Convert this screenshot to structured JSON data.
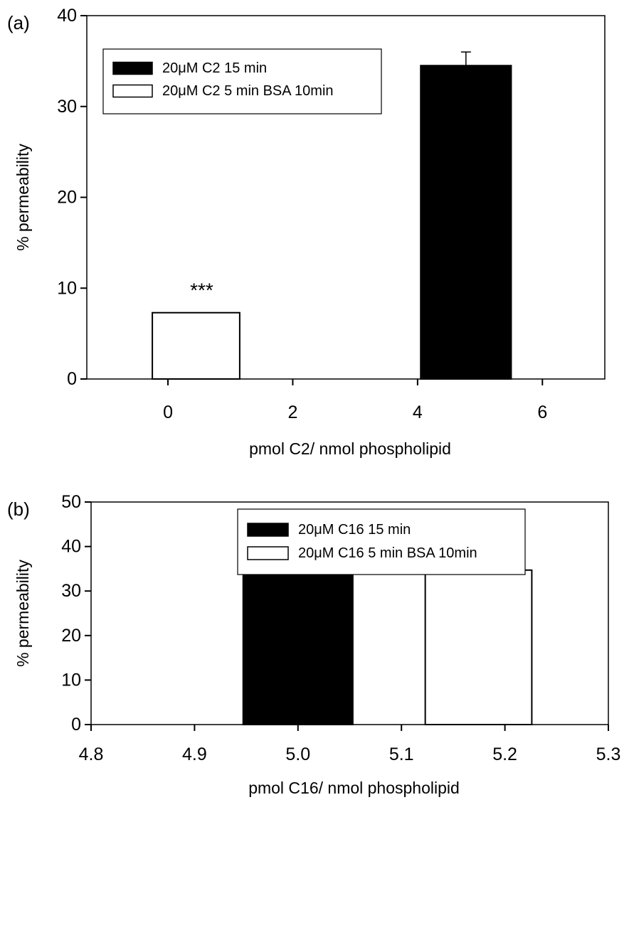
{
  "chart_data": [
    {
      "panel": "(a)",
      "type": "bar",
      "xlabel": "pmol C2/ nmol phospholipid",
      "ylabel": "% permeability",
      "xlim": [
        -1.3,
        7
      ],
      "ylim": [
        0,
        40
      ],
      "x_ticks": [
        0,
        2,
        4,
        6
      ],
      "y_ticks": [
        0,
        10,
        20,
        30,
        40
      ],
      "grid": false,
      "legend_position": "top-left",
      "series": [
        {
          "name": "20μM C2 15 min",
          "fill": "#000000",
          "bars": [
            {
              "x_start": 4.05,
              "x_end": 5.5,
              "value": 34.5,
              "error": 1.5
            }
          ]
        },
        {
          "name": "20μM C2 5 min BSA 10min",
          "fill": "#ffffff",
          "bars": [
            {
              "x_start": -0.25,
              "x_end": 1.15,
              "value": 7.3,
              "error": 0,
              "annotation": "***"
            }
          ]
        }
      ]
    },
    {
      "panel": "(b)",
      "type": "bar",
      "xlabel": "pmol C16/ nmol phospholipid",
      "ylabel": "% permeability",
      "xlim": [
        4.8,
        5.3
      ],
      "ylim": [
        0,
        50
      ],
      "x_ticks": [
        "4.8",
        "4.9",
        "5.0",
        "5.1",
        "5.2",
        "5.3"
      ],
      "y_ticks": [
        0,
        10,
        20,
        30,
        40,
        50
      ],
      "grid": false,
      "legend_position": "top-center",
      "series": [
        {
          "name": "20μM C16 15 min",
          "fill": "#000000",
          "bars": [
            {
              "x_start": 4.947,
              "x_end": 5.053,
              "value": 34,
              "error": 5.5
            }
          ]
        },
        {
          "name": "20μM C16 5 min BSA 10min",
          "fill": "#ffffff",
          "bars": [
            {
              "x_start": 5.123,
              "x_end": 5.226,
              "value": 34.7,
              "error": 3.3
            }
          ]
        }
      ]
    }
  ]
}
